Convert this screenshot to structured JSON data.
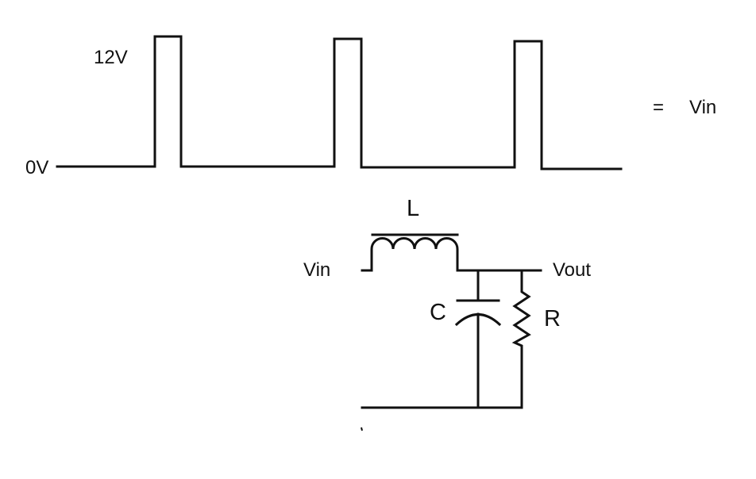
{
  "waveform": {
    "high_label": "12V",
    "low_label": "0V",
    "high_level_volts": 12,
    "low_level_volts": 0,
    "pulse_count": 3
  },
  "equation": {
    "equals_sign": "=",
    "rhs_label": "Vin"
  },
  "circuit": {
    "inductor_label": "L",
    "capacitor_label": "C",
    "resistor_label": "R",
    "input_label": "Vin",
    "output_label": "Vout"
  },
  "colors": {
    "stroke": "#111111",
    "background": "#ffffff"
  }
}
